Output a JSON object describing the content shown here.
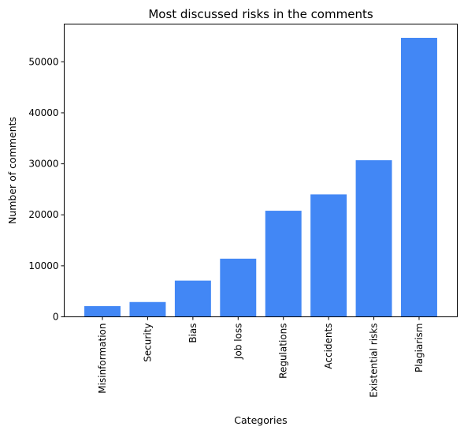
{
  "chart_data": {
    "type": "bar",
    "title": "Most discussed risks in the comments",
    "xlabel": "Categories",
    "ylabel": "Number of comments",
    "categories": [
      "Misinformation",
      "Security",
      "Bias",
      "Job loss",
      "Regulations",
      "Accidents",
      "Existential risks",
      "Plagiarism"
    ],
    "values": [
      2100,
      2900,
      7100,
      11400,
      20800,
      24000,
      30700,
      54700
    ],
    "ylim": [
      0,
      57400
    ],
    "yticks": [
      0,
      10000,
      20000,
      30000,
      40000,
      50000
    ],
    "ytick_labels": [
      "0",
      "10000",
      "20000",
      "30000",
      "40000",
      "50000"
    ],
    "grid": false,
    "legend": "none",
    "bar_color": "#4287F5"
  }
}
